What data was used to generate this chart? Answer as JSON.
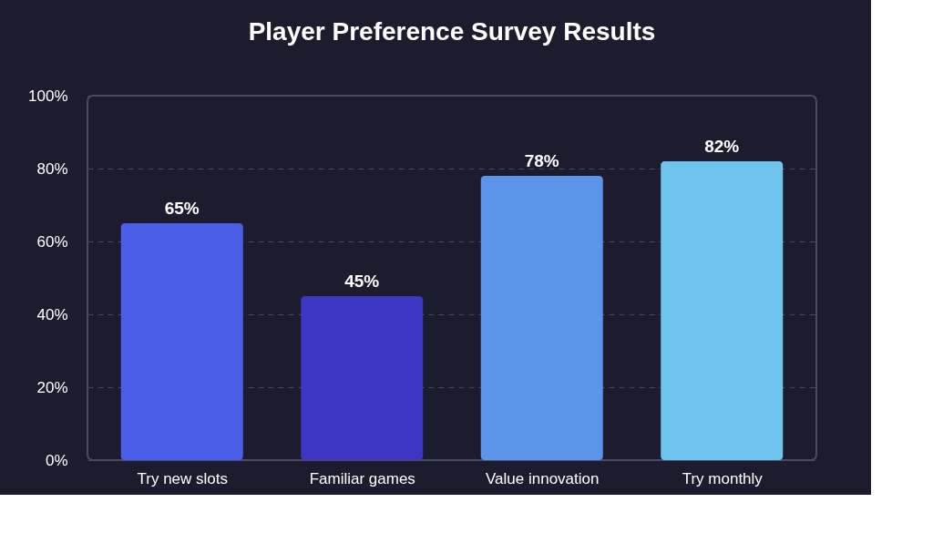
{
  "chart_data": {
    "type": "bar",
    "title": "Player Preference Survey Results",
    "categories": [
      "Try new slots",
      "Familiar games",
      "Value innovation",
      "Try monthly"
    ],
    "values": [
      65,
      45,
      78,
      82
    ],
    "colors": [
      "#4a5ee8",
      "#3d35c4",
      "#5b94e8",
      "#6ec4ec"
    ],
    "value_labels": [
      "65%",
      "45%",
      "78%",
      "82%"
    ],
    "ylim": [
      0,
      100
    ],
    "yticks": [
      {
        "value": 0,
        "label": "0%"
      },
      {
        "value": 20,
        "label": "20%"
      },
      {
        "value": 40,
        "label": "40%"
      },
      {
        "value": 60,
        "label": "60%"
      },
      {
        "value": 80,
        "label": "80%"
      },
      {
        "value": 100,
        "label": "100%"
      }
    ],
    "grid": "y"
  }
}
